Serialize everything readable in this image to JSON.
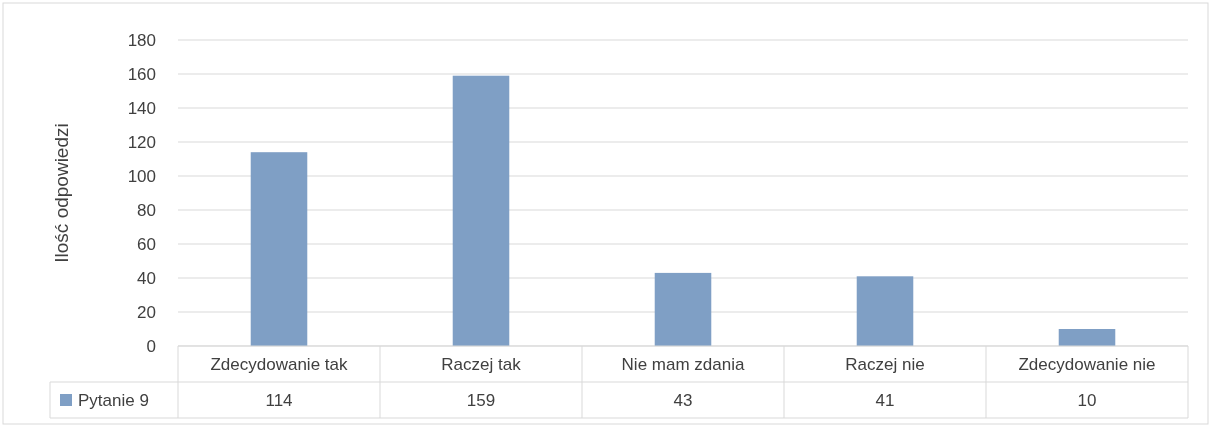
{
  "chart_data": {
    "type": "bar",
    "ylabel": "Ilość odpowiedzi",
    "categories": [
      "Zdecydowanie tak",
      "Raczej tak",
      "Nie mam zdania",
      "Raczej nie",
      "Zdecydowanie nie"
    ],
    "series": [
      {
        "name": "Pytanie 9",
        "color": "#7f9fc5",
        "values": [
          114,
          159,
          43,
          41,
          10
        ]
      }
    ],
    "ylim": [
      0,
      180
    ],
    "yticks": [
      0,
      20,
      40,
      60,
      80,
      100,
      120,
      140,
      160,
      180
    ],
    "grid": "y",
    "legend": "bottom left",
    "data_labels": true
  }
}
